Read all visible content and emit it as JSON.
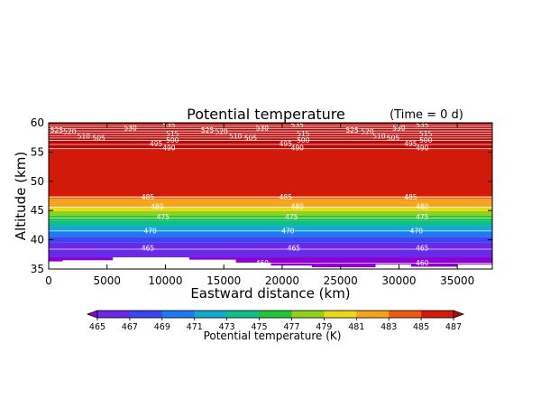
{
  "title": "Potential temperature",
  "time_label": "(Time = 0 d)",
  "chart_data": {
    "type": "heatmap",
    "title": "Potential temperature",
    "annotation": "(Time = 0 d)",
    "xlabel": "Eastward distance (km)",
    "ylabel": "Altitude (km)",
    "xlim": [
      0,
      38000
    ],
    "ylim": [
      35,
      60
    ],
    "x_ticks": [
      0,
      5000,
      10000,
      15000,
      20000,
      25000,
      30000,
      35000
    ],
    "y_ticks": [
      35,
      40,
      45,
      50,
      55,
      60
    ],
    "colorbar": {
      "label": "Potential temperature (K)",
      "ticks": [
        465,
        467,
        469,
        471,
        473,
        475,
        477,
        479,
        481,
        483,
        485,
        487
      ],
      "range": [
        465,
        487
      ],
      "extend": "both",
      "colors": [
        "#8c00d4",
        "#6a28e8",
        "#3c46f0",
        "#1e78f0",
        "#12a8d0",
        "#0fbf8a",
        "#23c43a",
        "#8fd21a",
        "#e8d81a",
        "#f5a21a",
        "#ee5a14",
        "#d21a0a",
        "#b80808"
      ]
    },
    "bands": [
      {
        "y0": 35.0,
        "y1": 37.0,
        "value": 464.5
      },
      {
        "y0": 37.0,
        "y1": 38.4,
        "value": 465.2
      },
      {
        "y0": 38.4,
        "y1": 39.5,
        "value": 466.8
      },
      {
        "y0": 39.5,
        "y1": 40.5,
        "value": 468.6
      },
      {
        "y0": 40.5,
        "y1": 41.5,
        "value": 470.3
      },
      {
        "y0": 41.5,
        "y1": 42.4,
        "value": 472.1
      },
      {
        "y0": 42.4,
        "y1": 43.3,
        "value": 473.9
      },
      {
        "y0": 43.3,
        "y1": 44.1,
        "value": 475.6
      },
      {
        "y0": 44.1,
        "y1": 44.9,
        "value": 477.4
      },
      {
        "y0": 44.9,
        "y1": 45.6,
        "value": 479.2
      },
      {
        "y0": 45.6,
        "y1": 46.3,
        "value": 481.0
      },
      {
        "y0": 46.3,
        "y1": 47.0,
        "value": 482.9
      },
      {
        "y0": 47.0,
        "y1": 47.5,
        "value": 484.6
      },
      {
        "y0": 47.5,
        "y1": 55.5,
        "value": 486.2
      },
      {
        "y0": 55.5,
        "y1": 60.0,
        "value": 488.0
      }
    ],
    "contours": [
      {
        "value": 460,
        "y": 36.0
      },
      {
        "value": 465,
        "y": 38.4
      },
      {
        "value": 470,
        "y": 41.5
      },
      {
        "value": 475,
        "y": 43.7
      },
      {
        "value": 480,
        "y": 45.6
      },
      {
        "value": 485,
        "y": 47.3
      },
      {
        "value": 490,
        "y": 55.6
      },
      {
        "value": 495,
        "y": 56.3
      },
      {
        "value": 500,
        "y": 57.0
      },
      {
        "value": 505,
        "y": 57.4
      },
      {
        "value": 510,
        "y": 57.8
      },
      {
        "value": 515,
        "y": 58.2
      },
      {
        "value": 520,
        "y": 58.6
      },
      {
        "value": 525,
        "y": 59.0
      },
      {
        "value": 530,
        "y": 59.3
      },
      {
        "value": 535,
        "y": 59.6
      }
    ],
    "contour_labels": [
      {
        "text": "460",
        "x": 18300,
        "y": 36.0
      },
      {
        "text": "460",
        "x": 32000,
        "y": 36.0
      },
      {
        "text": "465",
        "x": 8500,
        "y": 38.6
      },
      {
        "text": "465",
        "x": 21000,
        "y": 38.6
      },
      {
        "text": "465",
        "x": 32000,
        "y": 38.6
      },
      {
        "text": "470",
        "x": 8700,
        "y": 41.5
      },
      {
        "text": "470",
        "x": 20500,
        "y": 41.5
      },
      {
        "text": "470",
        "x": 31500,
        "y": 41.5
      },
      {
        "text": "475",
        "x": 9800,
        "y": 43.9
      },
      {
        "text": "475",
        "x": 20800,
        "y": 43.9
      },
      {
        "text": "475",
        "x": 32000,
        "y": 43.9
      },
      {
        "text": "480",
        "x": 9300,
        "y": 45.7
      },
      {
        "text": "480",
        "x": 21300,
        "y": 45.7
      },
      {
        "text": "480",
        "x": 32000,
        "y": 45.7
      },
      {
        "text": "485",
        "x": 8500,
        "y": 47.3
      },
      {
        "text": "485",
        "x": 20300,
        "y": 47.3
      },
      {
        "text": "485",
        "x": 31000,
        "y": 47.3
      },
      {
        "text": "490",
        "x": 10300,
        "y": 55.7
      },
      {
        "text": "490",
        "x": 21300,
        "y": 55.7
      },
      {
        "text": "490",
        "x": 32000,
        "y": 55.7
      },
      {
        "text": "495",
        "x": 9200,
        "y": 56.4
      },
      {
        "text": "495",
        "x": 20300,
        "y": 56.4
      },
      {
        "text": "495",
        "x": 31000,
        "y": 56.4
      },
      {
        "text": "500",
        "x": 10600,
        "y": 57.0
      },
      {
        "text": "500",
        "x": 21800,
        "y": 57.0
      },
      {
        "text": "500",
        "x": 32300,
        "y": 57.0
      },
      {
        "text": "505",
        "x": 4300,
        "y": 57.4
      },
      {
        "text": "505",
        "x": 17300,
        "y": 57.4
      },
      {
        "text": "505",
        "x": 29500,
        "y": 57.4
      },
      {
        "text": "510",
        "x": 3000,
        "y": 57.7
      },
      {
        "text": "510",
        "x": 16000,
        "y": 57.7
      },
      {
        "text": "510",
        "x": 28300,
        "y": 57.7
      },
      {
        "text": "515",
        "x": 10600,
        "y": 58.1
      },
      {
        "text": "515",
        "x": 21800,
        "y": 58.1
      },
      {
        "text": "515",
        "x": 32300,
        "y": 58.1
      },
      {
        "text": "520",
        "x": 1800,
        "y": 58.5
      },
      {
        "text": "520",
        "x": 14800,
        "y": 58.5
      },
      {
        "text": "520",
        "x": 27300,
        "y": 58.5
      },
      {
        "text": "525",
        "x": 700,
        "y": 58.7
      },
      {
        "text": "525",
        "x": 13600,
        "y": 58.7
      },
      {
        "text": "525",
        "x": 26000,
        "y": 58.7
      },
      {
        "text": "530",
        "x": 7000,
        "y": 59.1
      },
      {
        "text": "530",
        "x": 18300,
        "y": 59.1
      },
      {
        "text": "530",
        "x": 30000,
        "y": 59.1
      },
      {
        "text": "535",
        "x": 10300,
        "y": 59.6
      },
      {
        "text": "535",
        "x": 21300,
        "y": 59.6
      },
      {
        "text": "535",
        "x": 32000,
        "y": 59.6
      }
    ],
    "terrain": [
      {
        "x0": 0,
        "x1": 1200,
        "top": 36.3
      },
      {
        "x0": 1200,
        "x1": 5500,
        "top": 36.5
      },
      {
        "x0": 5500,
        "x1": 12000,
        "top": 37.0
      },
      {
        "x0": 12000,
        "x1": 16000,
        "top": 36.6
      },
      {
        "x0": 16000,
        "x1": 19000,
        "top": 36.1
      },
      {
        "x0": 19000,
        "x1": 22500,
        "top": 35.6
      },
      {
        "x0": 22500,
        "x1": 28000,
        "top": 35.3
      },
      {
        "x0": 28000,
        "x1": 31000,
        "top": 35.8
      },
      {
        "x0": 31000,
        "x1": 35000,
        "top": 35.4
      },
      {
        "x0": 35000,
        "x1": 38000,
        "top": 35.8
      }
    ]
  }
}
